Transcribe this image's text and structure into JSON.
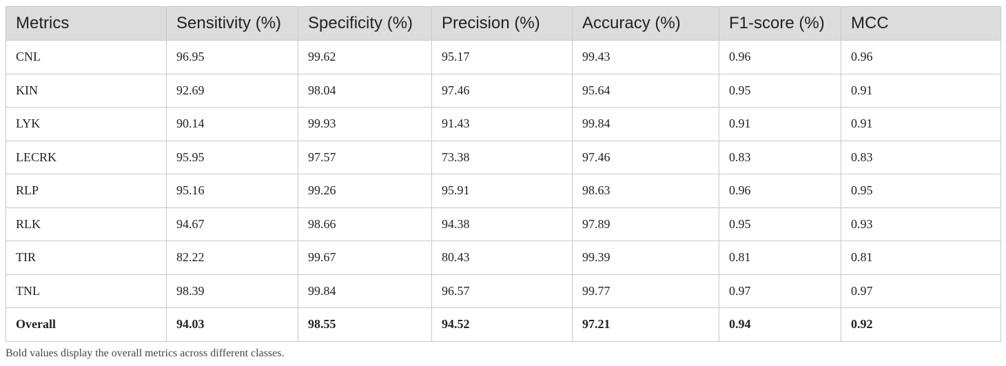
{
  "table": {
    "header": [
      "Metrics",
      "Sensitivity (%)",
      "Specificity (%)",
      "Precision (%)",
      "Accuracy (%)",
      "F1-score (%)",
      "MCC"
    ],
    "rows": [
      [
        "CNL",
        "96.95",
        "99.62",
        "95.17",
        "99.43",
        "0.96",
        "0.96"
      ],
      [
        "KIN",
        "92.69",
        "98.04",
        "97.46",
        "95.64",
        "0.95",
        "0.91"
      ],
      [
        "LYK",
        "90.14",
        "99.93",
        "91.43",
        "99.84",
        "0.91",
        "0.91"
      ],
      [
        "LECRK",
        "95.95",
        "97.57",
        "73.38",
        "97.46",
        "0.83",
        "0.83"
      ],
      [
        "RLP",
        "95.16",
        "99.26",
        "95.91",
        "98.63",
        "0.96",
        "0.95"
      ],
      [
        "RLK",
        "94.67",
        "98.66",
        "94.38",
        "97.89",
        "0.95",
        "0.93"
      ],
      [
        "TIR",
        "82.22",
        "99.67",
        "80.43",
        "99.39",
        "0.81",
        "0.81"
      ],
      [
        "TNL",
        "98.39",
        "99.84",
        "96.57",
        "99.77",
        "0.97",
        "0.97"
      ],
      [
        "Overall",
        "94.03",
        "98.55",
        "94.52",
        "97.21",
        "0.94",
        "0.92"
      ]
    ],
    "footnote": "Bold values display the overall metrics across different classes."
  }
}
